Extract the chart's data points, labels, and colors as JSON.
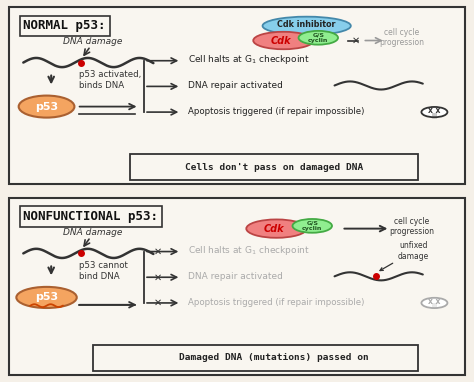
{
  "bg_color": "#f5f0e8",
  "panel_bg": "#f9f6f0",
  "border_color": "#333333",
  "title1": "NORMAL p53:",
  "title2": "NONFUNCTIONAL p53:",
  "summary1": "Cells don't pass on damaged DNA",
  "summary2": "Damaged DNA (mutations) passed on",
  "text_color_active": "#222222",
  "text_color_faded": "#aaaaaa",
  "p53_color": "#f4a460",
  "cdk_color": "#f08080",
  "cyclin_color": "#90ee90",
  "inhibitor_color": "#87ceeb",
  "dna_color": "#333333",
  "damage_color": "#cc0000",
  "arrow_color": "#333333"
}
